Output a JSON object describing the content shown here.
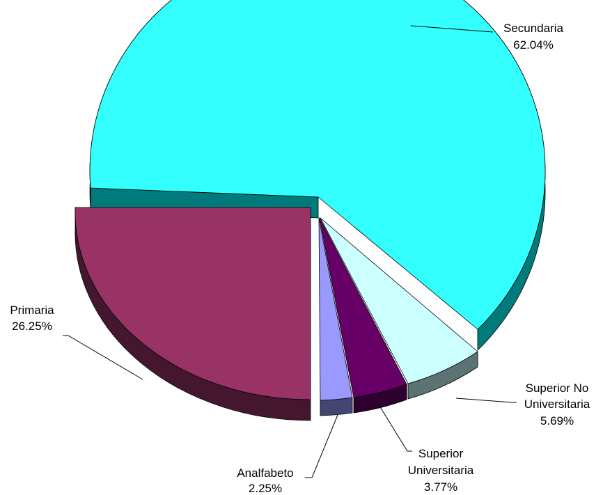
{
  "chart_data": {
    "type": "pie",
    "title": "",
    "slices": [
      {
        "name": "Secundaria",
        "pct_label": "62.04%",
        "value": 62.04,
        "color": "#33FFFF",
        "side_color": "#007A7A"
      },
      {
        "name": "Superior No Universitaria",
        "name_lines": [
          "Superior No",
          "Universitaria"
        ],
        "pct_label": "5.69%",
        "value": 5.69,
        "color": "#CCFFFF",
        "side_color": "#5C7373"
      },
      {
        "name": "Superior Universitaria",
        "name_lines": [
          "Superior",
          "Universitaria"
        ],
        "pct_label": "3.77%",
        "value": 3.77,
        "color": "#660066",
        "side_color": "#2E002E"
      },
      {
        "name": "Analfabeto",
        "pct_label": "2.25%",
        "value": 2.25,
        "color": "#9999FF",
        "side_color": "#454573"
      },
      {
        "name": "Primaria",
        "pct_label": "26.25%",
        "value": 26.25,
        "color": "#993366",
        "side_color": "#45172E"
      }
    ],
    "legend": "none",
    "style": "3d-exploded"
  }
}
